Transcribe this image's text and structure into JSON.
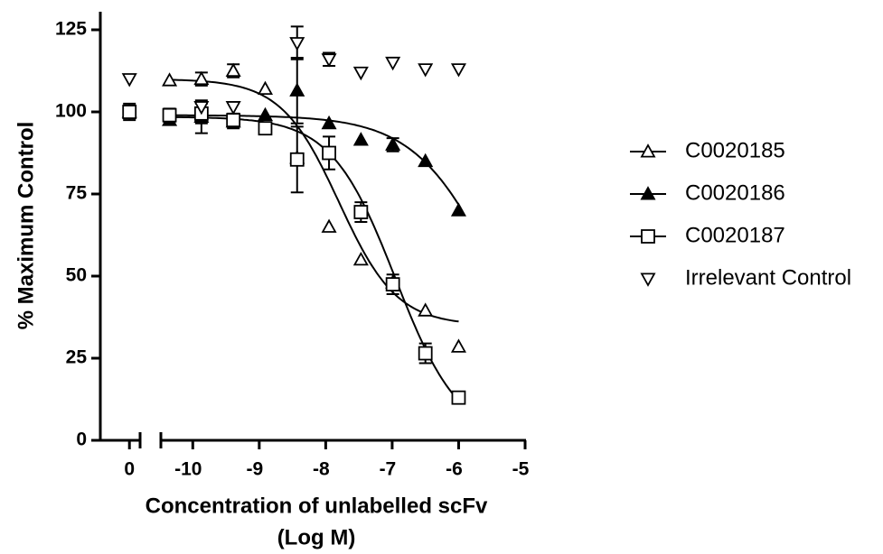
{
  "chart_data": {
    "type": "dose-response",
    "ylabel": "% Maximum Control",
    "xlabel": [
      "Concentration of unlabelled scFv",
      "(Log M)"
    ],
    "x": [
      0,
      -10.35,
      -9.87,
      -9.39,
      -8.91,
      -8.43,
      -7.95,
      -7.47,
      -6.99,
      -6.5,
      -6.0
    ],
    "xlim": [
      -10.48,
      -5
    ],
    "xticks": [
      -10,
      -9,
      -8,
      -7,
      -6,
      -5
    ],
    "x_break": {
      "xlim": [
        -0.41,
        0.16
      ],
      "xticks": [
        0
      ]
    },
    "ylim": [
      0,
      130.5
    ],
    "yticks": [
      0,
      25,
      50,
      75,
      100,
      125
    ],
    "legend": "right",
    "series": [
      {
        "name": "C0020185",
        "color": "#000000",
        "marker": "triangle-up-open",
        "values": [
          100,
          109.6,
          110,
          112.5,
          107,
          86,
          65,
          55,
          48,
          39.5,
          28.5
        ],
        "errors": [
          2,
          null,
          2,
          2,
          null,
          null,
          null,
          null,
          null,
          null,
          null
        ],
        "fit": {
          "top": 110,
          "bottom": 35,
          "logEC50": -7.8,
          "hill": 1.0
        }
      },
      {
        "name": "C0020186",
        "color": "#000000",
        "marker": "triangle-up-filled",
        "values": [
          null,
          97.5,
          98.5,
          97,
          99,
          106.5,
          96.5,
          91.5,
          90,
          85,
          70
        ],
        "errors": [
          null,
          null,
          5,
          2,
          null,
          10,
          null,
          null,
          2,
          null,
          null
        ],
        "fit": {
          "top": 99,
          "bottom": 0,
          "logEC50": -5.4,
          "hill": 0.7
        }
      },
      {
        "name": "C0020187",
        "color": "#000000",
        "marker": "square-open",
        "values": [
          100,
          99,
          99.5,
          97.5,
          95,
          85.5,
          87.5,
          69.5,
          47.5,
          26.5,
          13
        ],
        "errors": [
          2.5,
          2,
          3,
          2,
          null,
          10,
          5,
          3,
          3,
          3,
          null
        ],
        "fit": {
          "top": 98.5,
          "bottom": 0,
          "logEC50": -6.95,
          "hill": 0.9
        }
      },
      {
        "name": "Irrelevant Control",
        "color": "#000000",
        "marker": "triangle-down-open",
        "values": [
          110,
          null,
          101.5,
          101.5,
          null,
          121,
          116,
          112,
          115,
          113,
          113
        ],
        "errors": [
          null,
          null,
          null,
          null,
          null,
          5,
          2,
          null,
          null,
          null,
          null
        ]
      }
    ]
  }
}
